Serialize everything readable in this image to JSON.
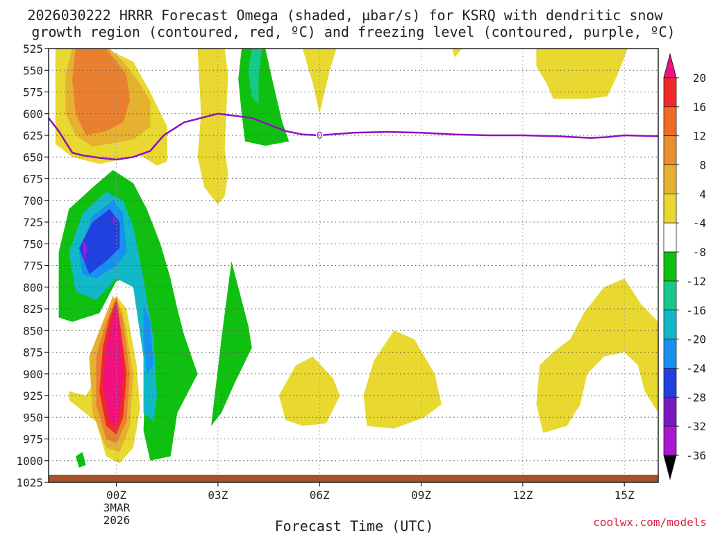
{
  "chart_data": {
    "type": "heatmap",
    "title_line1": "2026030222 HRRR Forecast Omega (shaded, µbar/s) for KSRQ with dendritic snow",
    "title_line2": "growth region (contoured, red, ºC) and freezing level (contoured, purple, ºC)",
    "xlabel": "Forecast Time (UTC)",
    "credit": "coolwx.com/models",
    "y_axis": {
      "unit": "hPa",
      "ticks": [
        525,
        550,
        575,
        600,
        625,
        650,
        675,
        700,
        725,
        750,
        775,
        800,
        825,
        850,
        875,
        900,
        925,
        950,
        975,
        1000,
        1025
      ],
      "labels": [
        "525",
        "550",
        "575",
        "600",
        "625",
        "650",
        "675",
        "700",
        "725",
        "750",
        "775",
        "800",
        "825",
        "850",
        "875",
        "900",
        "925",
        "950",
        "975",
        "1000",
        "1025"
      ],
      "range": [
        525,
        1025
      ]
    },
    "x_axis": {
      "unit": "hours from 00Z 3 Mar 2026",
      "range": [
        -2,
        16
      ],
      "ticks": [
        0,
        3,
        6,
        9,
        12,
        15
      ],
      "labels": [
        "00Z",
        "03Z",
        "06Z",
        "09Z",
        "12Z",
        "15Z"
      ],
      "date_line1": "3MAR",
      "date_line2": "2026"
    },
    "colorbar": {
      "labels": [
        "20",
        "16",
        "12",
        "8",
        "4",
        "-4",
        "-8",
        "-12",
        "-16",
        "-20",
        "-24",
        "-28",
        "-32",
        "-36"
      ],
      "colors": [
        "#f01080",
        "#f02828",
        "#f06a28",
        "#e89030",
        "#e6b030",
        "#e8d830",
        "#ffffff",
        "#10c010",
        "#18c888",
        "#12b8c8",
        "#1890f0",
        "#2040e0",
        "#7818c0",
        "#a818d0",
        "#a8a8a8"
      ]
    },
    "freezing_level": {
      "label": "0",
      "label_x": 6,
      "label_p": 625,
      "x": [
        -2,
        -1.7,
        -1.3,
        -1,
        -0.5,
        0,
        0.5,
        1,
        1.4,
        2,
        3,
        4,
        5,
        5.5,
        6,
        7,
        8,
        9,
        10,
        11,
        12,
        13,
        14,
        14.5,
        15,
        16
      ],
      "p": [
        605,
        620,
        645,
        648,
        651,
        653,
        650,
        643,
        625,
        610,
        600,
        605,
        620,
        624,
        625,
        622,
        621,
        622,
        624,
        625,
        625,
        626,
        628,
        627,
        625,
        626
      ]
    },
    "omega_regions": [
      {
        "level": 4,
        "points": [
          [
            -1.8,
            525
          ],
          [
            -0.3,
            525
          ],
          [
            0.5,
            540
          ],
          [
            1,
            575
          ],
          [
            1.5,
            615
          ],
          [
            1.5,
            655
          ],
          [
            1.2,
            660
          ],
          [
            0.7,
            648
          ],
          [
            -0.5,
            658
          ],
          [
            -1.3,
            650
          ],
          [
            -1.8,
            635
          ]
        ]
      },
      {
        "level": 8,
        "points": [
          [
            -1.3,
            525
          ],
          [
            -0.2,
            525
          ],
          [
            0.2,
            540
          ],
          [
            0.6,
            560
          ],
          [
            1,
            585
          ],
          [
            1,
            615
          ],
          [
            0.5,
            630
          ],
          [
            -0.7,
            638
          ],
          [
            -1.2,
            625
          ],
          [
            -1.5,
            600
          ],
          [
            -1.5,
            555
          ]
        ]
      },
      {
        "level": 12,
        "points": [
          [
            -1.2,
            525
          ],
          [
            -0.3,
            525
          ],
          [
            0.3,
            555
          ],
          [
            0.4,
            585
          ],
          [
            0.2,
            610
          ],
          [
            -0.3,
            620
          ],
          [
            -0.9,
            625
          ],
          [
            -1.2,
            600
          ],
          [
            -1.3,
            560
          ]
        ]
      },
      {
        "level": 4,
        "points": [
          [
            2.4,
            525
          ],
          [
            3.2,
            525
          ],
          [
            3.3,
            555
          ],
          [
            3.2,
            640
          ],
          [
            3.3,
            670
          ],
          [
            3.2,
            695
          ],
          [
            3,
            705
          ],
          [
            2.6,
            685
          ],
          [
            2.4,
            650
          ],
          [
            2.5,
            600
          ]
        ]
      },
      {
        "level": 4,
        "points": [
          [
            5.5,
            525
          ],
          [
            6.5,
            525
          ],
          [
            6.3,
            550
          ],
          [
            6,
            600
          ],
          [
            5.8,
            565
          ]
        ]
      },
      {
        "level": 4,
        "points": [
          [
            9.9,
            525
          ],
          [
            10.2,
            525
          ],
          [
            10,
            535
          ]
        ]
      },
      {
        "level": 4,
        "points": [
          [
            12.4,
            525
          ],
          [
            15.1,
            525
          ],
          [
            14.8,
            555
          ],
          [
            14.5,
            580
          ],
          [
            13.9,
            583
          ],
          [
            12.9,
            583
          ],
          [
            12.7,
            565
          ],
          [
            12.4,
            545
          ]
        ]
      },
      {
        "level": -4,
        "points": [
          [
            3.7,
            525
          ],
          [
            4.4,
            525
          ],
          [
            4.6,
            560
          ],
          [
            4.9,
            610
          ],
          [
            5.1,
            632
          ],
          [
            4.4,
            637
          ],
          [
            3.8,
            632
          ],
          [
            3.7,
            600
          ],
          [
            3.6,
            560
          ]
        ]
      },
      {
        "level": -8,
        "points": [
          [
            4,
            525
          ],
          [
            4.3,
            525
          ],
          [
            4.2,
            560
          ],
          [
            4.2,
            590
          ],
          [
            4,
            580
          ],
          [
            3.9,
            550
          ]
        ]
      },
      {
        "level": -4,
        "points": [
          [
            -1.7,
            835
          ],
          [
            -1.7,
            760
          ],
          [
            -1.4,
            710
          ],
          [
            -0.7,
            685
          ],
          [
            -0.1,
            665
          ],
          [
            0.5,
            680
          ],
          [
            0.9,
            710
          ],
          [
            1.3,
            750
          ],
          [
            1.6,
            790
          ],
          [
            1.8,
            825
          ],
          [
            2,
            855
          ],
          [
            2.4,
            900
          ],
          [
            1.8,
            945
          ],
          [
            1.6,
            995
          ],
          [
            1,
            1000
          ],
          [
            0.8,
            965
          ],
          [
            0.9,
            880
          ],
          [
            1,
            840
          ],
          [
            0.7,
            800
          ],
          [
            0.4,
            790
          ],
          [
            0,
            793
          ],
          [
            -0.5,
            830
          ],
          [
            -1.3,
            840
          ]
        ]
      },
      {
        "level": -4,
        "points": [
          [
            2.8,
            960
          ],
          [
            3.1,
            860
          ],
          [
            3.4,
            770
          ],
          [
            3.9,
            845
          ],
          [
            4,
            870
          ],
          [
            3.5,
            910
          ],
          [
            3.1,
            945
          ]
        ]
      },
      {
        "level": -4,
        "points": [
          [
            -1.2,
            995
          ],
          [
            -1,
            990
          ],
          [
            -0.9,
            1005
          ],
          [
            -1.1,
            1008
          ]
        ]
      },
      {
        "level": -12,
        "points": [
          [
            -1.4,
            760
          ],
          [
            -1,
            715
          ],
          [
            -0.3,
            690
          ],
          [
            0.2,
            700
          ],
          [
            0.5,
            730
          ],
          [
            0.8,
            790
          ],
          [
            1.1,
            860
          ],
          [
            1.2,
            925
          ],
          [
            1.1,
            955
          ],
          [
            0.8,
            945
          ],
          [
            0.8,
            880
          ],
          [
            0.5,
            800
          ],
          [
            0,
            790
          ],
          [
            -0.6,
            815
          ],
          [
            -1.2,
            805
          ]
        ]
      },
      {
        "level": -16,
        "points": [
          [
            -1.1,
            760
          ],
          [
            -0.7,
            718
          ],
          [
            -0.1,
            700
          ],
          [
            0.2,
            715
          ],
          [
            0.3,
            760
          ],
          [
            0,
            775
          ],
          [
            -0.6,
            790
          ],
          [
            -1,
            785
          ]
        ]
      },
      {
        "level": -16,
        "points": [
          [
            0.8,
            820
          ],
          [
            1,
            840
          ],
          [
            1.1,
            890
          ],
          [
            0.9,
            900
          ],
          [
            0.8,
            860
          ]
        ]
      },
      {
        "level": -20,
        "points": [
          [
            -1.1,
            755
          ],
          [
            -0.7,
            725
          ],
          [
            -0.2,
            710
          ],
          [
            0.1,
            725
          ],
          [
            0.1,
            755
          ],
          [
            -0.3,
            770
          ],
          [
            -0.8,
            785
          ]
        ]
      },
      {
        "level": -28,
        "points": [
          [
            -1,
            745
          ],
          [
            -0.85,
            755
          ],
          [
            -0.95,
            770
          ]
        ]
      },
      {
        "level": -28,
        "points": [
          [
            -0.1,
            718
          ],
          [
            0,
            723
          ],
          [
            -0.1,
            728
          ]
        ]
      },
      {
        "level": 4,
        "points": [
          [
            -1.4,
            920
          ],
          [
            -0.9,
            925
          ],
          [
            -0.5,
            900
          ],
          [
            -0.3,
            850
          ],
          [
            0,
            810
          ],
          [
            0.3,
            825
          ],
          [
            0.6,
            890
          ],
          [
            0.7,
            940
          ],
          [
            0.5,
            985
          ],
          [
            0.1,
            1003
          ],
          [
            -0.3,
            995
          ],
          [
            -0.6,
            955
          ],
          [
            -1.4,
            930
          ]
        ]
      },
      {
        "level": 8,
        "points": [
          [
            -0.8,
            880
          ],
          [
            -0.4,
            840
          ],
          [
            -0.1,
            810
          ],
          [
            0.2,
            830
          ],
          [
            0.5,
            900
          ],
          [
            0.4,
            960
          ],
          [
            0.1,
            990
          ],
          [
            -0.3,
            985
          ],
          [
            -0.7,
            945
          ]
        ]
      },
      {
        "level": 12,
        "points": [
          [
            -0.6,
            880
          ],
          [
            -0.3,
            840
          ],
          [
            0,
            810
          ],
          [
            0.2,
            840
          ],
          [
            0.4,
            900
          ],
          [
            0.3,
            955
          ],
          [
            0,
            980
          ],
          [
            -0.3,
            975
          ],
          [
            -0.6,
            935
          ]
        ]
      },
      {
        "level": 16,
        "points": [
          [
            -0.4,
            870
          ],
          [
            -0.2,
            835
          ],
          [
            0,
            815
          ],
          [
            0.1,
            840
          ],
          [
            0.3,
            900
          ],
          [
            0.2,
            950
          ],
          [
            0,
            970
          ],
          [
            -0.3,
            960
          ],
          [
            -0.5,
            920
          ]
        ]
      },
      {
        "level": 20,
        "points": [
          [
            -0.3,
            870
          ],
          [
            -0.1,
            835
          ],
          [
            0,
            820
          ],
          [
            0.1,
            845
          ],
          [
            0.2,
            900
          ],
          [
            0.1,
            945
          ],
          [
            0,
            960
          ],
          [
            -0.2,
            955
          ],
          [
            -0.4,
            910
          ]
        ]
      },
      {
        "level": 4,
        "points": [
          [
            4.8,
            925
          ],
          [
            5.3,
            890
          ],
          [
            5.8,
            880
          ],
          [
            6.4,
            905
          ],
          [
            6.6,
            925
          ],
          [
            6.2,
            957
          ],
          [
            5.5,
            960
          ],
          [
            5,
            953
          ]
        ]
      },
      {
        "level": 4,
        "points": [
          [
            7.4,
            960
          ],
          [
            7.3,
            925
          ],
          [
            7.6,
            885
          ],
          [
            8.2,
            850
          ],
          [
            8.8,
            860
          ],
          [
            9.4,
            900
          ],
          [
            9.6,
            935
          ],
          [
            9.1,
            950
          ],
          [
            8.2,
            963
          ]
        ]
      },
      {
        "level": 4,
        "points": [
          [
            12.4,
            935
          ],
          [
            12.5,
            890
          ],
          [
            12.9,
            875
          ],
          [
            13.4,
            860
          ],
          [
            13.8,
            830
          ],
          [
            14.4,
            800
          ],
          [
            15,
            790
          ],
          [
            15.5,
            820
          ],
          [
            16,
            840
          ],
          [
            16,
            945
          ],
          [
            15.6,
            920
          ],
          [
            15.4,
            890
          ],
          [
            15,
            875
          ],
          [
            14.4,
            880
          ],
          [
            13.9,
            900
          ],
          [
            13.7,
            935
          ],
          [
            13.3,
            960
          ],
          [
            12.6,
            968
          ]
        ]
      }
    ]
  }
}
